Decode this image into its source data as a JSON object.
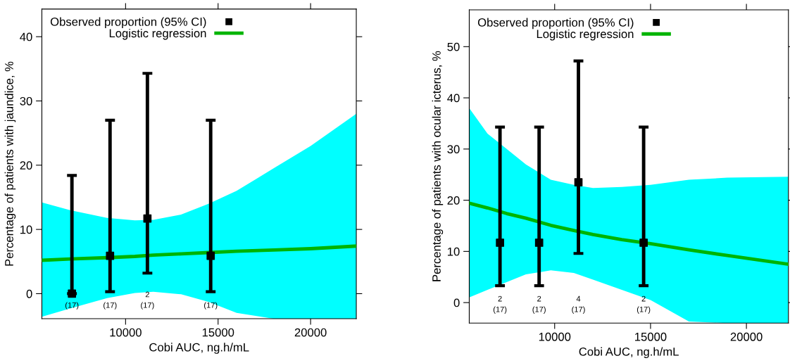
{
  "chart_data": [
    {
      "type": "scatter",
      "xlabel": "Cobi AUC, ng.h/mL",
      "ylabel": "Percentage of patients with jaundice, %",
      "xlim": [
        5475,
        22470
      ],
      "ylim": [
        -3.9,
        44.3
      ],
      "xticks": [
        10000,
        15000,
        20000
      ],
      "yticks": [
        0,
        10,
        20,
        30,
        40
      ],
      "legend": "top left",
      "grid": false,
      "series": [
        {
          "name": "Observed proportion (95% CI)",
          "color": "#000000",
          "marker": "square",
          "x": [
            7100,
            9160,
            11180,
            14600
          ],
          "values": [
            0,
            5.9,
            11.7,
            5.9
          ],
          "errors": [
            [
              0,
              18.4
            ],
            [
              0.3,
              27
            ],
            [
              3.2,
              34.3
            ],
            [
              0.3,
              27
            ]
          ]
        },
        {
          "name": "Logistic regression",
          "type": "line",
          "color": "#00b400",
          "marker": "none",
          "x": [
            5475,
            7000,
            9000,
            10500,
            11500,
            13000,
            14500,
            16000,
            18000,
            20000,
            22470
          ],
          "values": [
            5.2,
            5.4,
            5.6,
            5.8,
            6,
            6.2,
            6.4,
            6.6,
            6.8,
            7,
            7.4
          ],
          "lower": [
            -3.6,
            -2.3,
            -0.7,
            0.1,
            0.3,
            -0.1,
            -1.3,
            -3,
            -3.9,
            -3.9,
            -3.9
          ],
          "upper": [
            14.2,
            13,
            11.8,
            11.4,
            11.5,
            12.3,
            14,
            16,
            19.5,
            23,
            28
          ]
        }
      ],
      "annotations": [
        "(17)",
        "(17)",
        "2\n(17)",
        "(17)"
      ]
    },
    {
      "type": "scatter",
      "xlabel": "Cobi AUC, ng.h/mL",
      "ylabel": "Percentage of patients with ocular icterus, %",
      "xlim": [
        5547,
        22190
      ],
      "ylim": [
        -4,
        57.2
      ],
      "xticks": [
        10000,
        15000,
        20000
      ],
      "yticks": [
        0,
        10,
        20,
        30,
        40,
        50
      ],
      "legend": "top left",
      "grid": false,
      "series": [
        {
          "name": "Observed proportion (95% CI)",
          "color": "#000000",
          "marker": "square",
          "x": [
            7150,
            9190,
            11240,
            14640
          ],
          "values": [
            11.7,
            11.7,
            23.5,
            11.7
          ],
          "errors": [
            [
              3.3,
              34.3
            ],
            [
              3.3,
              34.3
            ],
            [
              9.6,
              47.2
            ],
            [
              3.3,
              34.3
            ]
          ]
        },
        {
          "name": "Logistic regression",
          "type": "line",
          "color": "#00b400",
          "marker": "none",
          "x": [
            5547,
            6500,
            7500,
            8500,
            9800,
            11000,
            12000,
            13500,
            15000,
            17000,
            19000,
            22190
          ],
          "values": [
            19.4,
            18.5,
            17.4,
            16.5,
            15.1,
            14.1,
            13.3,
            12.3,
            11.5,
            10.3,
            9.2,
            7.5
          ],
          "lower": [
            1,
            2.5,
            4,
            5.5,
            6.3,
            5.8,
            4.5,
            2.5,
            0.5,
            -3.7,
            -4,
            -4
          ],
          "upper": [
            38,
            33,
            30,
            27,
            24,
            23,
            22.4,
            22.6,
            23,
            24,
            24.4,
            24.6
          ]
        }
      ],
      "annotations": [
        "2\n(17)",
        "2\n(17)",
        "4\n(17)",
        "2\n(17)"
      ]
    }
  ]
}
